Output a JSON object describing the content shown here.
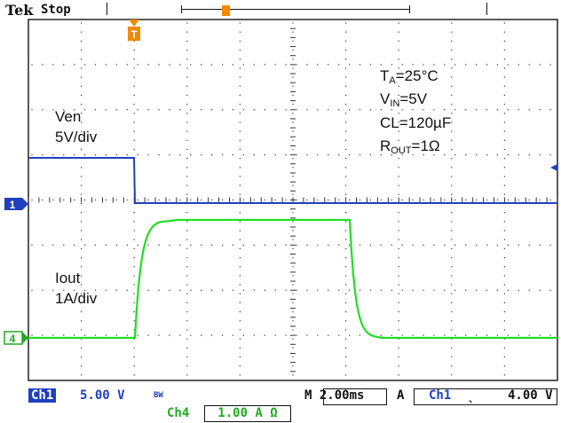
{
  "header": {
    "brand": "Tek",
    "run_state": "Stop",
    "trigger_marker_label": "T"
  },
  "channels": {
    "ch1_marker": "1",
    "ch4_marker": "4",
    "ch1_color": "#1f3fbf",
    "ch4_color": "#22dd22",
    "marker_color": "#f08a00"
  },
  "annotations": {
    "ven_title": "Ven",
    "ven_scale": "5V/div",
    "iout_title": "Iout",
    "iout_scale": "1A/div",
    "ta": {
      "main": "T",
      "sub": "A",
      "rest": "=25°C"
    },
    "vin": {
      "main": "V",
      "sub": "IN",
      "rest": "=5V"
    },
    "cl": "CL=120µF",
    "rout": {
      "main": "R",
      "sub": "OUT",
      "rest": "=1Ω"
    }
  },
  "readouts": {
    "ch1_label": "Ch1",
    "ch1_scale": "5.00 V",
    "bw_label": "BW",
    "timebase": "M 2.00ms",
    "trigger_mode": "A",
    "trigger_source": "Ch1",
    "trigger_slope": "ˎ",
    "trigger_level": "4.00 V",
    "ch4_label": "Ch4",
    "ch4_scale": "1.00 A Ω"
  }
}
